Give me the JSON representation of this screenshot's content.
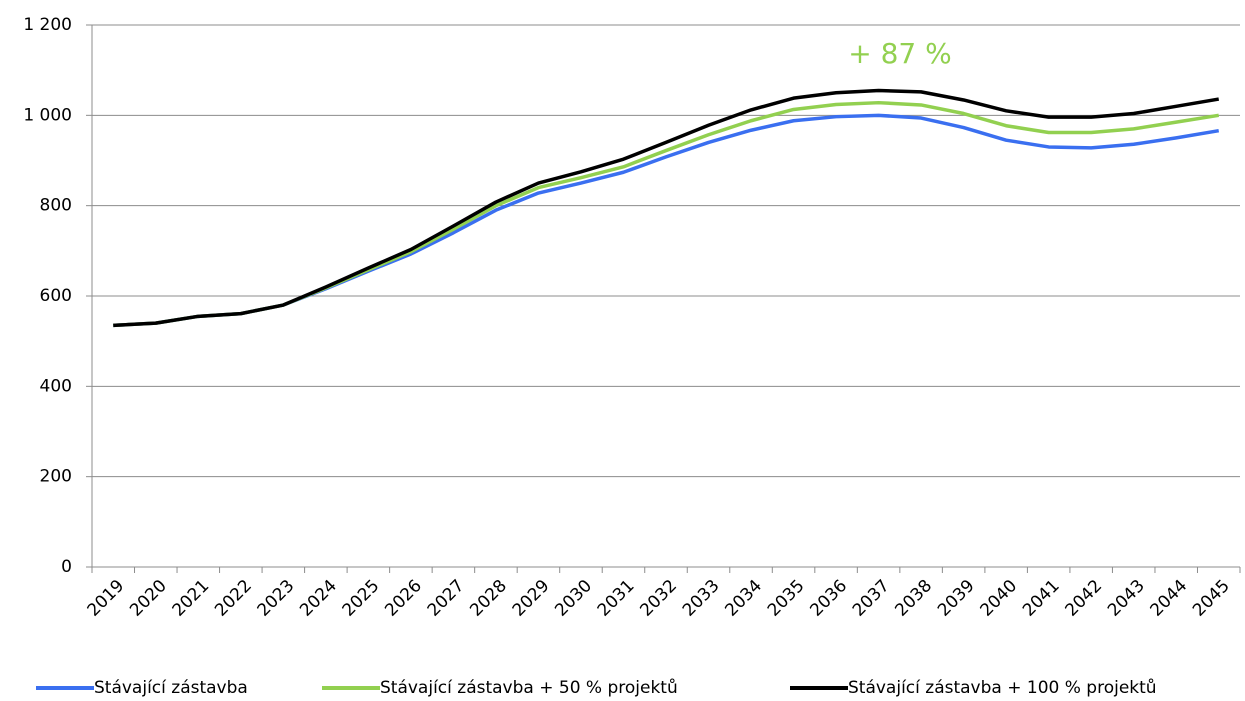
{
  "chart_data": {
    "type": "line",
    "annotation": "+ 87 %",
    "annotation_color": "#92d050",
    "categories": [
      "2019",
      "2020",
      "2021",
      "2022",
      "2023",
      "2024",
      "2025",
      "2026",
      "2027",
      "2028",
      "2029",
      "2030",
      "2031",
      "2032",
      "2033",
      "2034",
      "2035",
      "2036",
      "2037",
      "2038",
      "2039",
      "2040",
      "2041",
      "2042",
      "2043",
      "2044",
      "2045"
    ],
    "series": [
      {
        "name": "Stávající zástavba",
        "color": "#3a6ff0",
        "values": [
          535,
          540,
          555,
          561,
          580,
          616,
          655,
          693,
          740,
          790,
          828,
          850,
          874,
          908,
          940,
          967,
          988,
          997,
          1000,
          994,
          973,
          945,
          930,
          928,
          936,
          950,
          966
        ]
      },
      {
        "name": "Stávající zástavba + 50 % projektů",
        "color": "#92d050",
        "values": [
          535,
          540,
          555,
          561,
          580,
          618,
          658,
          698,
          748,
          800,
          840,
          862,
          886,
          922,
          957,
          988,
          1013,
          1024,
          1028,
          1023,
          1004,
          977,
          962,
          962,
          970,
          985,
          1000
        ]
      },
      {
        "name": "Stávající zástavba + 100 % projektů",
        "color": "#000000",
        "values": [
          535,
          540,
          555,
          561,
          580,
          620,
          662,
          703,
          755,
          808,
          850,
          875,
          903,
          940,
          978,
          1012,
          1038,
          1050,
          1055,
          1052,
          1034,
          1010,
          996,
          996,
          1004,
          1020,
          1036
        ]
      }
    ],
    "ylim": [
      0,
      1200
    ],
    "yticks": [
      0,
      200,
      400,
      600,
      800,
      {
        "value": 1000,
        "label": "1 000"
      },
      {
        "value": 1200,
        "label": "1 200"
      }
    ],
    "grid": true
  }
}
